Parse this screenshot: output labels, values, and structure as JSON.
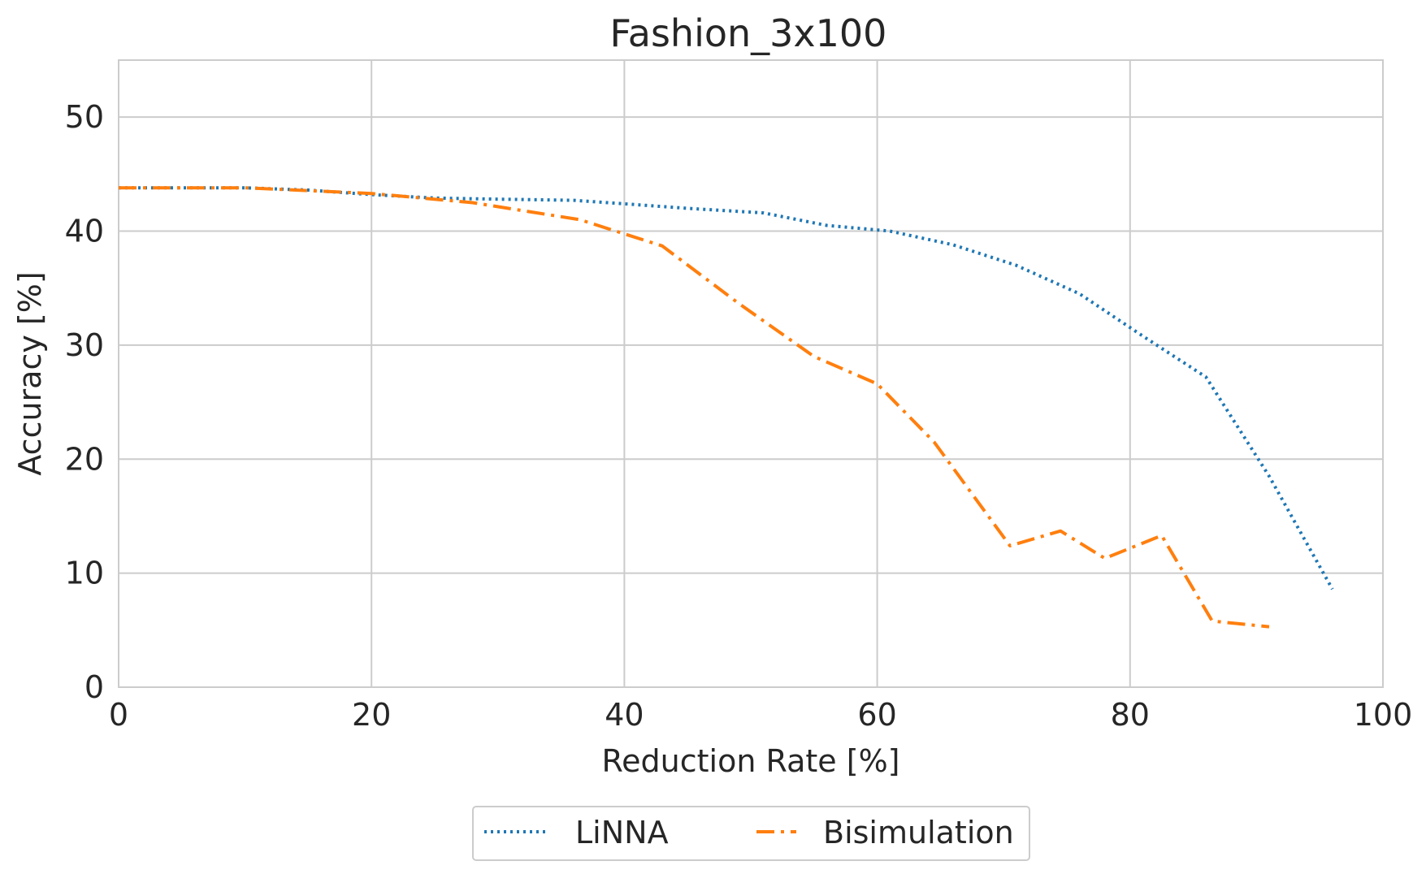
{
  "chart_data": {
    "type": "line",
    "title": "Fashion_3x100",
    "xlabel": "Reduction Rate [%]",
    "ylabel": "Accuracy [%]",
    "xlim": [
      0,
      100
    ],
    "ylim": [
      0,
      55
    ],
    "x_ticks": [
      0,
      20,
      40,
      60,
      80,
      100
    ],
    "y_ticks": [
      0,
      10,
      20,
      30,
      40,
      50
    ],
    "grid": true,
    "legend_position": "bottom-center",
    "series": [
      {
        "name": "LiNNA",
        "color": "#1f77b4",
        "line_style": "dotted",
        "x": [
          0,
          5,
          10,
          15,
          20,
          25,
          30,
          36,
          40,
          45,
          51,
          56,
          61,
          66,
          71,
          76,
          81,
          86,
          91,
          96
        ],
        "y": [
          43.8,
          43.8,
          43.8,
          43.6,
          43.2,
          42.9,
          42.8,
          42.7,
          42.4,
          42.0,
          41.6,
          40.5,
          40.0,
          38.8,
          37.0,
          34.5,
          30.8,
          27.2,
          18.5,
          8.6
        ]
      },
      {
        "name": "Bisimulation",
        "color": "#ff7f0e",
        "line_style": "dashdot",
        "x": [
          0,
          10,
          20,
          28,
          36.5,
          43,
          49,
          55,
          60,
          64.5,
          70.5,
          74.5,
          78,
          82.5,
          86.5,
          91
        ],
        "y": [
          43.8,
          43.8,
          43.3,
          42.5,
          41.0,
          38.7,
          33.7,
          29.0,
          26.6,
          21.5,
          12.4,
          13.7,
          11.3,
          13.3,
          5.8,
          5.3
        ]
      }
    ]
  }
}
